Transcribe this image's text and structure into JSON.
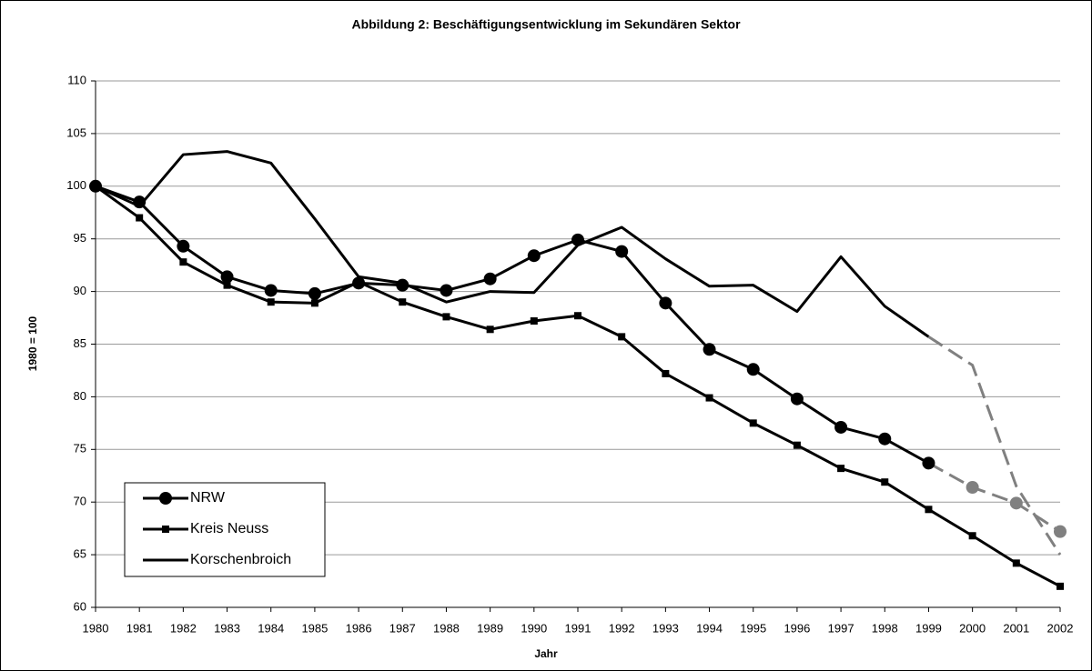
{
  "chart_data": {
    "type": "line",
    "title": "Abbildung 2: Beschäftigungsentwicklung im Sekundären Sektor",
    "x_label": "Jahr",
    "y_label": "1980 = 100",
    "categories": [
      "1980",
      "1981",
      "1982",
      "1983",
      "1984",
      "1985",
      "1986",
      "1987",
      "1988",
      "1989",
      "1990",
      "1991",
      "1992",
      "1993",
      "1994",
      "1995",
      "1996",
      "1997",
      "1998",
      "1999",
      "2000",
      "2001",
      "2002"
    ],
    "ylim": [
      60,
      110
    ],
    "yticks": [
      60,
      65,
      70,
      75,
      80,
      85,
      90,
      95,
      100,
      105,
      110
    ],
    "grid": true,
    "legend": "lower left",
    "series": [
      {
        "name": "NRW",
        "color": "#000000",
        "marker": "circle",
        "dash_from": 19,
        "dash_color": "#808080",
        "values": [
          100,
          98.5,
          94.3,
          91.4,
          90.1,
          89.8,
          90.8,
          90.6,
          90.1,
          91.2,
          93.4,
          94.9,
          93.8,
          88.9,
          84.5,
          82.6,
          79.8,
          77.1,
          76.0,
          73.7,
          71.4,
          69.9,
          67.2
        ]
      },
      {
        "name": "Kreis Neuss",
        "color": "#000000",
        "marker": "square",
        "values": [
          100,
          97.0,
          92.8,
          90.6,
          89.0,
          88.9,
          90.9,
          89.0,
          87.6,
          86.4,
          87.2,
          87.7,
          85.7,
          82.2,
          79.9,
          77.5,
          75.4,
          73.2,
          71.9,
          69.3,
          66.8,
          64.2,
          62.0
        ]
      },
      {
        "name": "Korschenbroich",
        "color": "#000000",
        "marker": "none",
        "dash_from": 19,
        "dash_color": "#808080",
        "values": [
          100,
          98.1,
          103.0,
          103.3,
          102.2,
          96.9,
          91.4,
          90.8,
          89.0,
          90.0,
          89.9,
          94.4,
          96.1,
          93.1,
          90.5,
          90.6,
          88.1,
          93.3,
          88.6,
          85.7,
          83.0,
          71.5,
          65.0
        ]
      }
    ]
  }
}
